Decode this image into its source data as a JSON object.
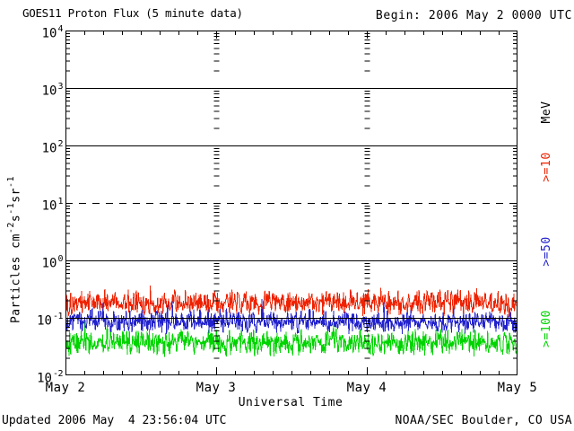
{
  "header": {
    "title": "GOES11 Proton Flux (5 minute data)",
    "begin": "Begin: 2006 May 2 0000 UTC"
  },
  "footer": {
    "updated": "Updated 2006 May  4 23:56:04 UTC",
    "source": "NOAA/SEC Boulder, CO USA"
  },
  "chart_data": {
    "type": "line",
    "title": "GOES11 Proton Flux (5 minute data)",
    "xlabel": "Universal Time",
    "ylabel": "Particles cm-2 s-1 sr-1",
    "ylabel_segments": [
      {
        "text": "Particles cm",
        "sup": false
      },
      {
        "text": "-2",
        "sup": true
      },
      {
        "text": "s",
        "sup": false
      },
      {
        "text": "-1",
        "sup": true
      },
      {
        "text": "sr",
        "sup": false
      },
      {
        "text": "-1",
        "sup": true
      }
    ],
    "right_axis_unit": "MeV",
    "y_scale": "log10",
    "y_tick_exponents": [
      4,
      3,
      2,
      1,
      0,
      -1,
      -2
    ],
    "ylim": [
      0.01,
      10000
    ],
    "x_ticks": [
      "May 2",
      "May 3",
      "May 4",
      "May 5"
    ],
    "x_range_days": 3,
    "x_minor_tick_hours": 3,
    "cadence_minutes": 5,
    "points_per_series": 864,
    "grid": {
      "solid_decades": [
        3,
        2,
        0,
        -1
      ],
      "dashed_decades": [
        1
      ],
      "dash_pattern": "8,7",
      "day_gridlines": [
        1,
        2
      ]
    },
    "series": [
      {
        "name": "Protons >=10 MeV",
        "legend_label": ">=10",
        "color": "#ee2200",
        "median_flux": 0.18,
        "flux_range": [
          0.08,
          0.65
        ],
        "gen": {
          "seed": 101,
          "log10_base": -0.74,
          "log10_spread": 0.27,
          "spike_prob": 0.02,
          "spike_log10": 0.3
        }
      },
      {
        "name": "Protons >=50 MeV",
        "legend_label": ">=50",
        "color": "#2222cc",
        "median_flux": 0.09,
        "flux_range": [
          0.045,
          0.25
        ],
        "gen": {
          "seed": 202,
          "log10_base": -1.06,
          "log10_spread": 0.23,
          "spike_prob": 0.02,
          "spike_log10": 0.32
        }
      },
      {
        "name": "Protons >=100 MeV",
        "legend_label": ">=100",
        "color": "#00d400",
        "median_flux": 0.038,
        "flux_range": [
          0.018,
          0.1
        ],
        "gen": {
          "seed": 303,
          "log10_base": -1.43,
          "log10_spread": 0.26,
          "spike_prob": 0.015,
          "spike_log10": 0.3,
          "rare_spike_prob": 0.003,
          "rare_spike_log10": 0.75
        }
      }
    ],
    "draw_order": [
      0,
      2,
      1
    ],
    "legend_position": "right-rotated"
  }
}
